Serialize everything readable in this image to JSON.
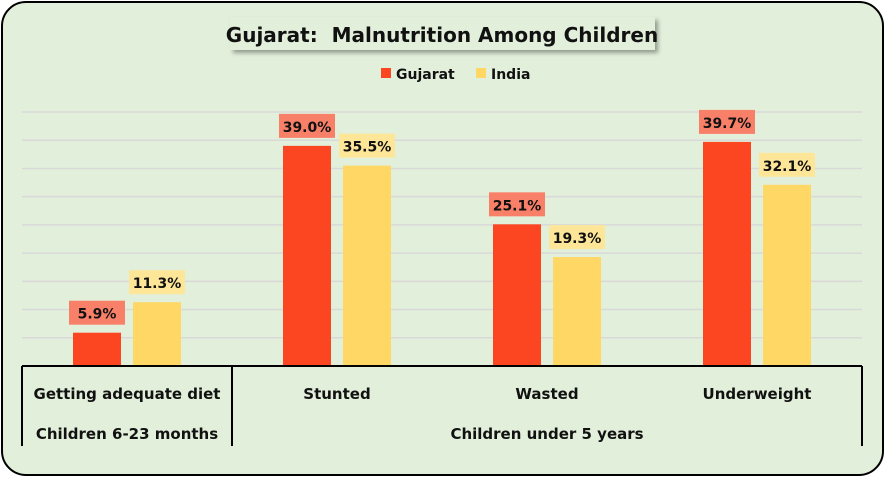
{
  "chart_data": {
    "type": "bar",
    "title": "Gujarat:  Malnutrition Among Children",
    "categories": [
      "Getting adequate diet",
      "Stunted",
      "Wasted",
      "Underweight"
    ],
    "groups": [
      {
        "label": "Children 6-23 months",
        "categories": [
          "Getting adequate diet"
        ]
      },
      {
        "label": "Children under 5 years",
        "categories": [
          "Stunted",
          "Wasted",
          "Underweight"
        ]
      }
    ],
    "series": [
      {
        "name": "Gujarat",
        "values": [
          5.9,
          39.0,
          25.1,
          39.7
        ],
        "labels": [
          "5.9%",
          "39.0%",
          "25.1%",
          "39.7%"
        ],
        "color": "#FC4521",
        "label_bg": "#F98068"
      },
      {
        "name": "India",
        "values": [
          11.3,
          35.5,
          19.3,
          32.1
        ],
        "labels": [
          "11.3%",
          "35.5%",
          "19.3%",
          "32.1%"
        ],
        "color": "#FFD765",
        "label_bg": "#FEE699"
      }
    ],
    "ylim": [
      0,
      45
    ],
    "grid": true,
    "legend": "top",
    "unit": "%",
    "background": "#E2EFDA"
  }
}
